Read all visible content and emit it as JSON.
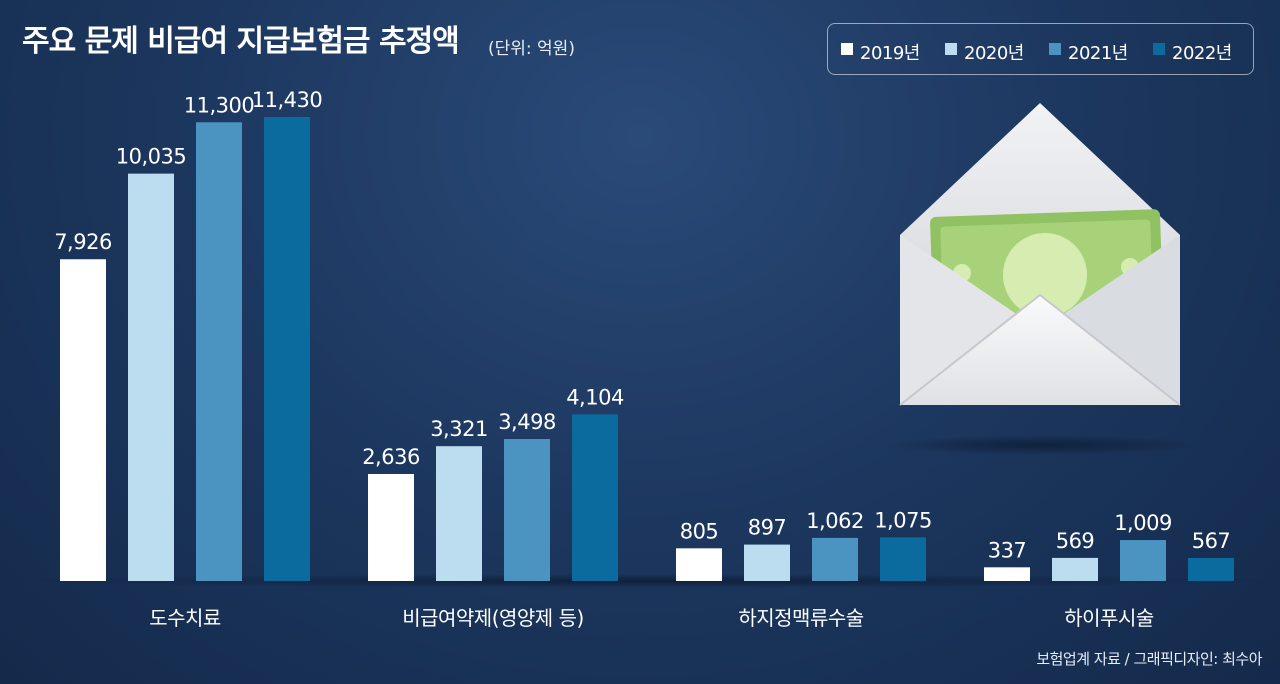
{
  "title": "주요 문제 비급여 지급보험금 추정액",
  "unit": "(단위: 억원)",
  "source": "보험업계 자료 / 그래픽디자인: 최수아",
  "illustration": "envelope-with-money-icon",
  "colors": {
    "2019년": "#ffffff",
    "2020년": "#bcdcef",
    "2021년": "#4b94c2",
    "2022년": "#0b6b9e"
  },
  "chart_data": {
    "type": "bar",
    "title": "주요 문제 비급여 지급보험금 추정액",
    "unit": "(단위: 억원)",
    "categories": [
      "도수치료",
      "비급여약제(영양제 등)",
      "하지정맥류수술",
      "하이푸시술"
    ],
    "series": [
      {
        "name": "2019년",
        "values": [
          7926,
          2636,
          805,
          337
        ],
        "labels": [
          "7,926",
          "2,636",
          "805",
          "337"
        ]
      },
      {
        "name": "2020년",
        "values": [
          10035,
          3321,
          897,
          569
        ],
        "labels": [
          "10,035",
          "3,321",
          "897",
          "569"
        ]
      },
      {
        "name": "2021년",
        "values": [
          11300,
          3498,
          1062,
          1009
        ],
        "labels": [
          "11,300",
          "3,498",
          "1,062",
          "1,009"
        ]
      },
      {
        "name": "2022년",
        "values": [
          11430,
          4104,
          1075,
          567
        ],
        "labels": [
          "11,430",
          "4,104",
          "1,075",
          "567"
        ]
      }
    ],
    "ylim": [
      0,
      11430
    ],
    "grid": false,
    "legend_position": "top-right"
  }
}
